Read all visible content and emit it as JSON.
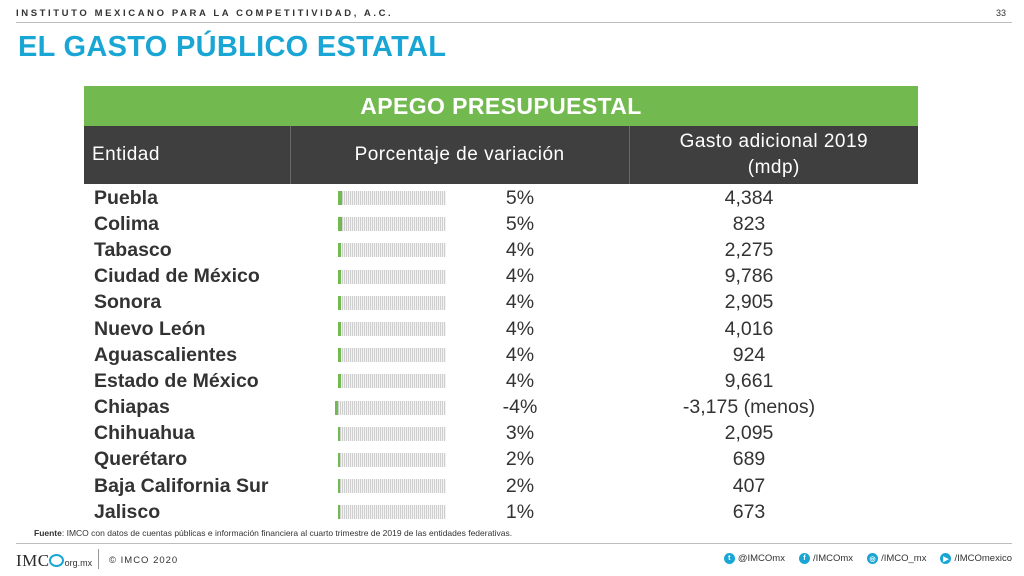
{
  "header": {
    "org": "INSTITUTO MEXICANO PARA LA COMPETITIVIDAD, A.C.",
    "page_number": "33",
    "title": "EL GASTO PÚBLICO ESTATAL"
  },
  "table": {
    "banner": "APEGO PRESUPUESTAL",
    "columns": {
      "entidad": "Entidad",
      "variacion": "Porcentaje de variación",
      "gasto_line1": "Gasto adicional 2019",
      "gasto_line2": "(mdp)"
    },
    "bar_color": "#72b94f",
    "rows": [
      {
        "entidad": "Puebla",
        "pct": "5%",
        "pct_value": 5,
        "gasto": "4,384"
      },
      {
        "entidad": "Colima",
        "pct": "5%",
        "pct_value": 5,
        "gasto": "823"
      },
      {
        "entidad": "Tabasco",
        "pct": "4%",
        "pct_value": 4,
        "gasto": "2,275"
      },
      {
        "entidad": "Ciudad de México",
        "pct": "4%",
        "pct_value": 4,
        "gasto": "9,786"
      },
      {
        "entidad": "Sonora",
        "pct": "4%",
        "pct_value": 4,
        "gasto": "2,905"
      },
      {
        "entidad": "Nuevo León",
        "pct": "4%",
        "pct_value": 4,
        "gasto": "4,016"
      },
      {
        "entidad": "Aguascalientes",
        "pct": "4%",
        "pct_value": 4,
        "gasto": "924"
      },
      {
        "entidad": "Estado de México",
        "pct": "4%",
        "pct_value": 4,
        "gasto": "9,661"
      },
      {
        "entidad": "Chiapas",
        "pct": "-4%",
        "pct_value": -4,
        "gasto": "-3,175 (menos)"
      },
      {
        "entidad": "Chihuahua",
        "pct": "3%",
        "pct_value": 3,
        "gasto": "2,095"
      },
      {
        "entidad": "Querétaro",
        "pct": "2%",
        "pct_value": 2,
        "gasto": "689"
      },
      {
        "entidad": "Baja California Sur",
        "pct": "2%",
        "pct_value": 2,
        "gasto": "407"
      },
      {
        "entidad": "Jalisco",
        "pct": "1%",
        "pct_value": 1,
        "gasto": "673"
      }
    ]
  },
  "source": {
    "label": "Fuente",
    "text": ": IMCO con datos de cuentas públicas e información financiera al cuarto trimestre de 2019 de las entidades federativas."
  },
  "footer": {
    "logo_text": "IMC",
    "logo_domain": "org.mx",
    "copyright": "© IMCO 2020",
    "socials": [
      {
        "icon": "twitter-icon",
        "glyph": "t",
        "label": "@IMCOmx"
      },
      {
        "icon": "facebook-icon",
        "glyph": "f",
        "label": "/IMCOmx"
      },
      {
        "icon": "instagram-icon",
        "glyph": "◎",
        "label": "/IMCO_mx"
      },
      {
        "icon": "youtube-icon",
        "glyph": "▶",
        "label": "/IMCOmexico"
      }
    ]
  }
}
